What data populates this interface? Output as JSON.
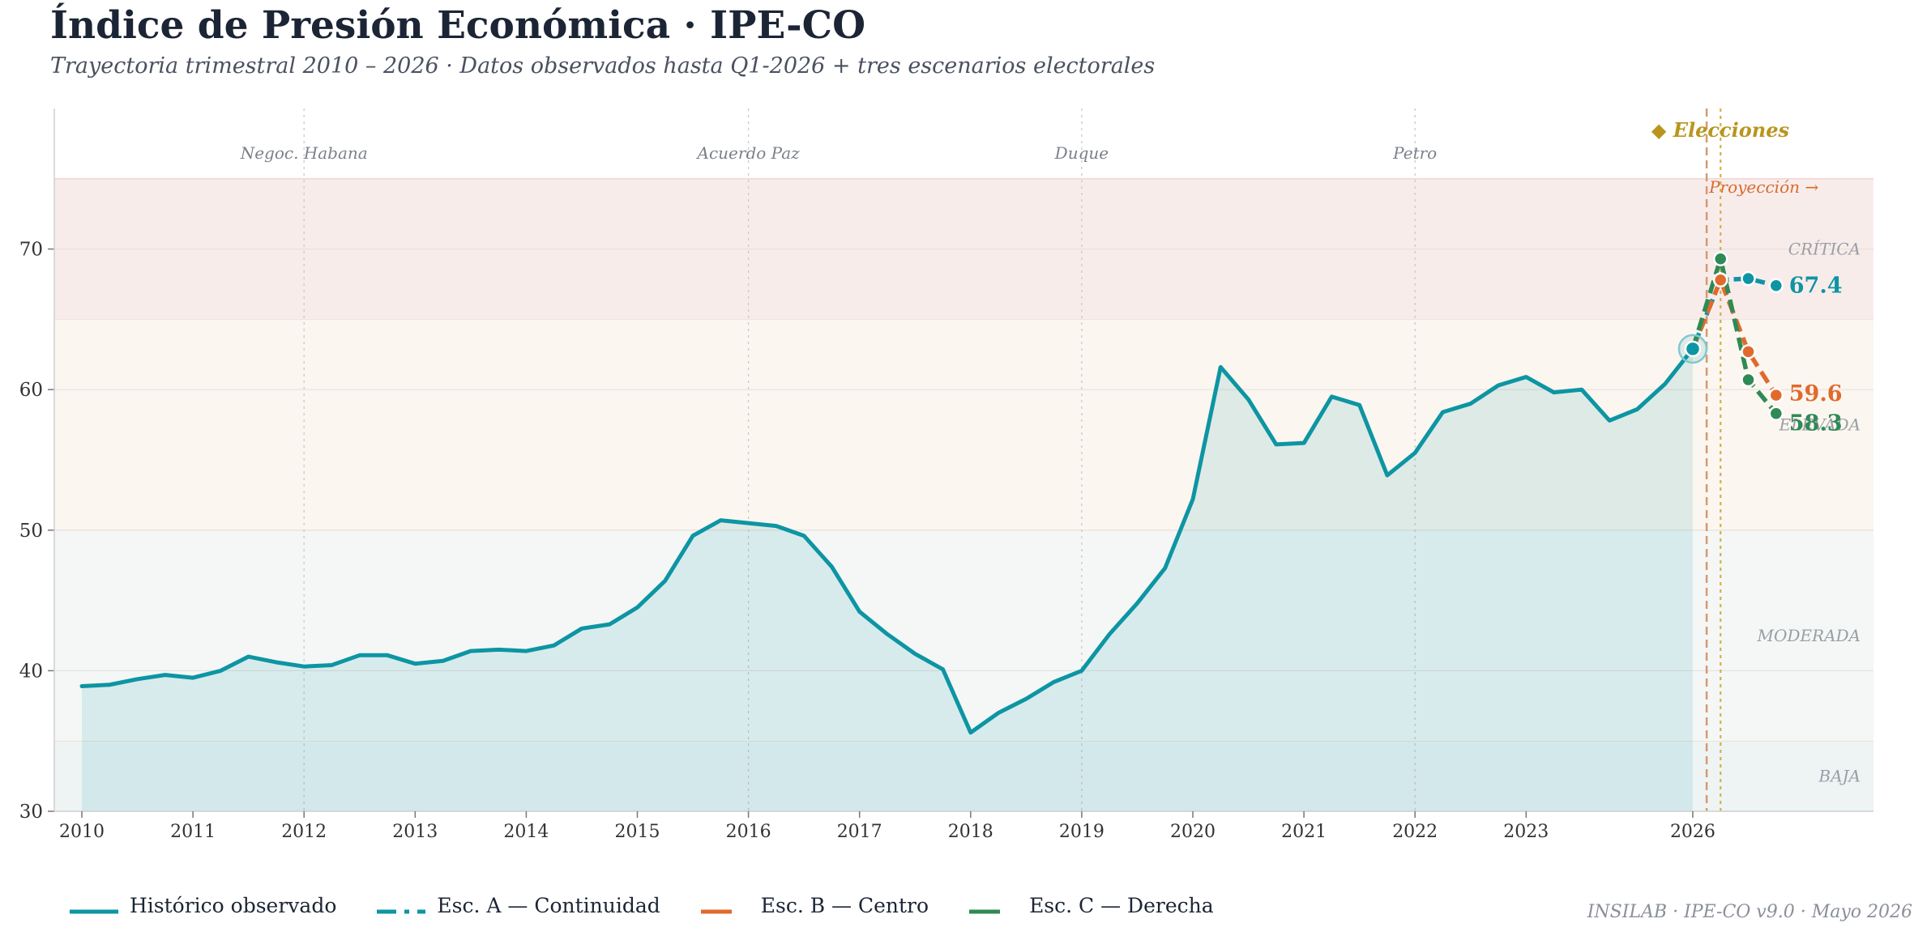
{
  "title": "Índice de Presión Económica · IPE-CO",
  "subtitle": "Trayectoria trimestral 2010 – 2026 · Datos observados hasta Q1-2026 + tres escenarios electorales",
  "footer": "INSILAB · IPE-CO v9.0 · Mayo 2026",
  "legend": [
    {
      "label": "Histórico observado",
      "color": "#0d95a3",
      "style": "solid"
    },
    {
      "label": "Esc. A — Continuidad",
      "color": "#0d95a3",
      "style": "dashdot"
    },
    {
      "label": "Esc. B — Centro",
      "color": "#e06a2c",
      "style": "dashed"
    },
    {
      "label": "Esc. C — Derecha",
      "color": "#2f8a55",
      "style": "dashed"
    }
  ],
  "chart_data": {
    "type": "line",
    "ylim": [
      30,
      80
    ],
    "yticks": [
      30,
      40,
      50,
      60,
      70
    ],
    "xlim": [
      2009.75,
      2026.25
    ],
    "xticks": [
      {
        "value": 2010,
        "label": "2010"
      },
      {
        "value": 2011,
        "label": "2011"
      },
      {
        "value": 2012,
        "label": "2012"
      },
      {
        "value": 2013,
        "label": "2013"
      },
      {
        "value": 2014,
        "label": "2014"
      },
      {
        "value": 2015,
        "label": "2015"
      },
      {
        "value": 2016,
        "label": "2016"
      },
      {
        "value": 2017,
        "label": "2017"
      },
      {
        "value": 2018,
        "label": "2018"
      },
      {
        "value": 2019,
        "label": "2019"
      },
      {
        "value": 2020,
        "label": "2020"
      },
      {
        "value": 2021,
        "label": "2021"
      },
      {
        "value": 2022,
        "label": "2022"
      },
      {
        "value": 2023,
        "label": "2023"
      },
      {
        "value": 2024.5,
        "label": "2026"
      }
    ],
    "grid": true,
    "zones": [
      {
        "label": "BAJA",
        "from": 30,
        "to": 35,
        "color": "#eef4f4"
      },
      {
        "label": "MODERADA",
        "from": 35,
        "to": 50,
        "color": "#f4f7f6"
      },
      {
        "label": "ELEVADA",
        "from": 50,
        "to": 65,
        "color": "#fbf6f0"
      },
      {
        "label": "CRÍTICA",
        "from": 65,
        "to": 75,
        "color": "#f8eceb"
      }
    ],
    "events": [
      {
        "x": 2012.0,
        "label": "Negoc. Habana"
      },
      {
        "x": 2016.0,
        "label": "Acuerdo Paz"
      },
      {
        "x": 2019.0,
        "label": "Duque"
      },
      {
        "x": 2022.0,
        "label": "Petro"
      }
    ],
    "projection_start": {
      "x": 2024.625,
      "label": "Proyección →"
    },
    "elections": {
      "x": 2024.75,
      "label": "◆ Elecciones"
    },
    "series": [
      {
        "name": "Histórico observado",
        "color": "#0d95a3",
        "x": [
          2010.0,
          2010.25,
          2010.5,
          2010.75,
          2011.0,
          2011.25,
          2011.5,
          2011.75,
          2012.0,
          2012.25,
          2012.5,
          2012.75,
          2013.0,
          2013.25,
          2013.5,
          2013.75,
          2014.0,
          2014.25,
          2014.5,
          2014.75,
          2015.0,
          2015.25,
          2015.5,
          2015.75,
          2016.0,
          2016.25,
          2016.5,
          2016.75,
          2017.0,
          2017.25,
          2017.5,
          2017.75,
          2018.0,
          2018.25,
          2018.5,
          2018.75,
          2019.0,
          2019.25,
          2019.5,
          2019.75,
          2020.0,
          2020.25,
          2020.5,
          2020.75,
          2021.0,
          2021.25,
          2021.5,
          2021.75,
          2022.0,
          2022.25,
          2022.5,
          2022.75,
          2023.0,
          2023.25,
          2023.5,
          2023.75,
          2024.0,
          2024.25,
          2024.5
        ],
        "values": [
          38.9,
          39.0,
          39.4,
          39.7,
          39.5,
          40.0,
          41.0,
          40.6,
          40.3,
          40.4,
          41.1,
          41.1,
          40.5,
          40.7,
          41.4,
          41.5,
          41.4,
          41.8,
          43.0,
          43.3,
          44.5,
          46.4,
          49.6,
          50.7,
          50.5,
          50.3,
          49.6,
          47.4,
          44.2,
          42.6,
          41.2,
          40.1,
          35.6,
          37.0,
          38.0,
          39.2,
          40.0,
          42.6,
          44.8,
          47.3,
          52.2,
          61.6,
          59.3,
          56.1,
          56.2,
          59.5,
          58.9,
          53.9,
          55.5,
          58.4,
          59.0,
          60.3,
          60.9,
          59.8,
          60.0,
          57.8,
          58.6,
          60.4,
          62.9
        ]
      },
      {
        "name": "Esc. A — Continuidad",
        "color": "#0d95a3",
        "dash": "12 6 3 6",
        "x": [
          2024.5,
          2024.75,
          2025.0,
          2025.25
        ],
        "values": [
          62.9,
          67.8,
          67.9,
          67.4
        ],
        "end_label": "67.4"
      },
      {
        "name": "Esc. B — Centro",
        "color": "#e06a2c",
        "dash": "16 8",
        "x": [
          2024.5,
          2024.75,
          2025.0,
          2025.25
        ],
        "values": [
          62.9,
          67.8,
          62.7,
          59.6
        ],
        "end_label": "59.6"
      },
      {
        "name": "Esc. C — Derecha",
        "color": "#2f8a55",
        "dash": "16 8",
        "x": [
          2024.5,
          2024.75,
          2025.0,
          2025.25
        ],
        "values": [
          62.9,
          69.3,
          60.7,
          58.3
        ],
        "end_label": "58.3"
      }
    ],
    "current_point": {
      "x": 2024.5,
      "value": 62.9
    }
  }
}
